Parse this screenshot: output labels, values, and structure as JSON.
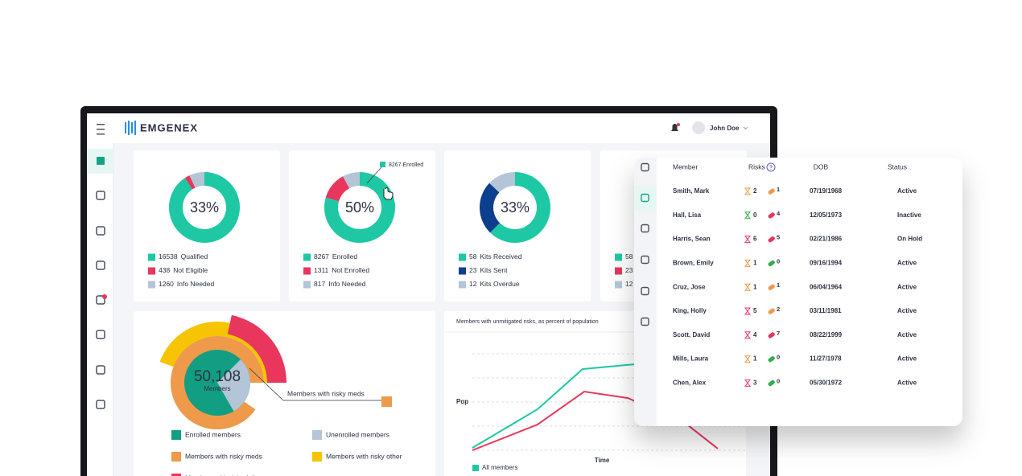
{
  "header": {
    "brand": "EMGENEX",
    "user": "John Doe"
  },
  "summary_cards": [
    {
      "center_label": "33%",
      "legend": [
        {
          "value": 16538,
          "label": "Qualified",
          "color": "#1ec8a5"
        },
        {
          "value": 438,
          "label": "Not Eligible",
          "color": "#e8365d"
        },
        {
          "value": 1260,
          "label": "Info Needed",
          "color": "#b3c5d7"
        }
      ]
    },
    {
      "center_label": "50%",
      "tooltip": "8267 Enrolled",
      "legend": [
        {
          "value": 8267,
          "label": "Enrolled",
          "color": "#1ec8a5"
        },
        {
          "value": 1311,
          "label": "Not Enrolled",
          "color": "#e8365d"
        },
        {
          "value": 817,
          "label": "Info Needed",
          "color": "#b3c5d7"
        }
      ]
    },
    {
      "center_label": "33%",
      "legend": [
        {
          "value": 58,
          "label": "Kits Received",
          "color": "#1ec8a5"
        },
        {
          "value": 23,
          "label": "Kits Sent",
          "color": "#0d3f8f"
        },
        {
          "value": 12,
          "label": "Kits Overdue",
          "color": "#b3c5d7"
        }
      ]
    },
    {
      "legend": [
        {
          "value": 58,
          "color": "#1ec8a5"
        },
        {
          "value": 23,
          "color": "#e8365d"
        },
        {
          "value": 12,
          "color": "#b3c5d7"
        }
      ]
    }
  ],
  "members_card": {
    "center_value": "50,108",
    "center_label": "Members",
    "annotation": "Members with risky meds",
    "legend": [
      {
        "label": "Enrolled members",
        "color": "#129e82"
      },
      {
        "label": "Unenrolled members",
        "color": "#b3c5d7"
      },
      {
        "label": "Members with risky meds",
        "color": "#ef9a4a"
      },
      {
        "label": "Members with risky other",
        "color": "#f6c400"
      },
      {
        "label": "Members with risk of diseases",
        "color": "#e8365d"
      }
    ]
  },
  "risk_chart": {
    "title": "Members with unmitigated risks, as percent of population",
    "y_label": "Pop",
    "x_label": "Time",
    "legend": "All members"
  },
  "member_table": {
    "columns": [
      "Member",
      "Risks",
      "DOB",
      "Status"
    ],
    "rows": [
      {
        "member": "Smith, Mark",
        "risk_a": 2,
        "risk_b": 1,
        "dob": "07/19/1968",
        "status": "Active"
      },
      {
        "member": "Hall, Lisa",
        "risk_a": 0,
        "risk_b": 4,
        "dob": "12/05/1973",
        "status": "Inactive"
      },
      {
        "member": "Harris, Sean",
        "risk_a": 6,
        "risk_b": 5,
        "dob": "02/21/1986",
        "status": "On Hold"
      },
      {
        "member": "Brown, Emily",
        "risk_a": 1,
        "risk_b": 0,
        "dob": "09/16/1994",
        "status": "Active"
      },
      {
        "member": "Cruz, Jose",
        "risk_a": 1,
        "risk_b": 1,
        "dob": "06/04/1964",
        "status": "Active"
      },
      {
        "member": "King, Holly",
        "risk_a": 5,
        "risk_b": 2,
        "dob": "03/11/1981",
        "status": "Active"
      },
      {
        "member": "Scott, David",
        "risk_a": 4,
        "risk_b": 7,
        "dob": "08/22/1999",
        "status": "Active"
      },
      {
        "member": "Mills, Laura",
        "risk_a": 1,
        "risk_b": 0,
        "dob": "11/27/1978",
        "status": "Active"
      },
      {
        "member": "Chen, Alex",
        "risk_a": 3,
        "risk_b": 0,
        "dob": "05/30/1972",
        "status": "Active"
      }
    ]
  }
}
